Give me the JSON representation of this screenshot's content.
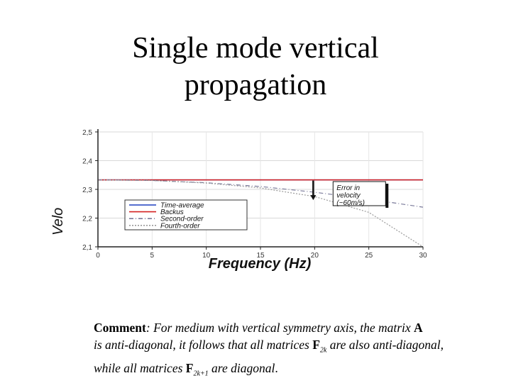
{
  "title": {
    "line1": "Single mode vertical",
    "line2": "propagation"
  },
  "chart_data": {
    "type": "line",
    "xlabel": "Frequency (Hz)",
    "ylabel": "Velo",
    "xlim": [
      0,
      30
    ],
    "ylim": [
      2.1,
      2.5
    ],
    "xticks": [
      0,
      5,
      10,
      15,
      20,
      25,
      30
    ],
    "yticks": [
      2.1,
      2.2,
      2.3,
      2.4,
      2.5
    ],
    "ytick_labels": [
      "2,1",
      "2,2",
      "2,3",
      "2,4",
      "2,5"
    ],
    "grid": true,
    "legend_position": "bottom-left",
    "series": [
      {
        "name": "Time-average",
        "color": "#1f3fbf",
        "style": "solid",
        "x": [
          0,
          30
        ],
        "y": [
          2.333,
          2.333
        ]
      },
      {
        "name": "Backus",
        "color": "#d42020",
        "style": "solid",
        "x": [
          0,
          30
        ],
        "y": [
          2.333,
          2.333
        ]
      },
      {
        "name": "Second-order",
        "color": "#7a7a9a",
        "style": "dashdot",
        "x": [
          0,
          5,
          10,
          15,
          20,
          25,
          30
        ],
        "y": [
          2.333,
          2.331,
          2.323,
          2.31,
          2.29,
          2.266,
          2.238
        ]
      },
      {
        "name": "Fourth-order",
        "color": "#9a9a9a",
        "style": "dotted",
        "x": [
          0,
          5,
          10,
          15,
          20,
          25,
          30
        ],
        "y": [
          2.333,
          2.331,
          2.322,
          2.305,
          2.275,
          2.22,
          2.1
        ]
      }
    ],
    "annotation": {
      "line1": "Error in",
      "line2": "velocity",
      "line3": "(~60m/s)",
      "x": 20,
      "y_from": 2.333,
      "y_to": 2.27
    }
  },
  "comment": {
    "label": "Comment",
    "text1": ": For medium with vertical symmetry axis, the matrix ",
    "matrixA": "A",
    "text2": "is anti-diagonal, it follows that all matrices ",
    "matrixF": "F",
    "sub_even": "2k",
    "text3": " are also anti-diagonal,",
    "text4": "while all matrices ",
    "sub_odd": "2k+1",
    "text5": " are diagonal",
    "period": "."
  }
}
